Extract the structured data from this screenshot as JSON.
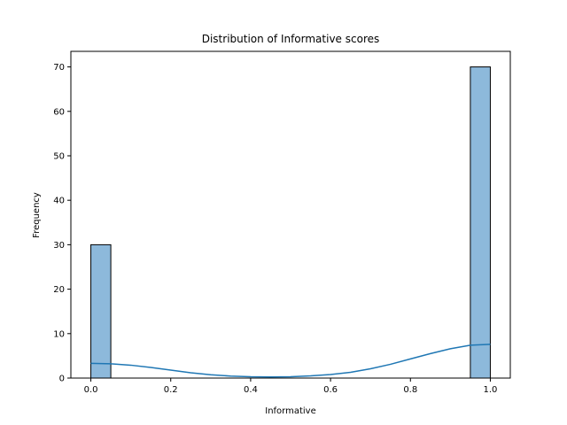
{
  "chart_data": {
    "type": "bar",
    "title": "Distribution of Informative scores",
    "xlabel": "Informative",
    "ylabel": "Frequency",
    "xlim": [
      -0.05,
      1.05
    ],
    "ylim": [
      0,
      73.5
    ],
    "xticks": [
      0.0,
      0.2,
      0.4,
      0.6,
      0.8,
      1.0
    ],
    "xtick_labels": [
      "0.0",
      "0.2",
      "0.4",
      "0.6",
      "0.8",
      "1.0"
    ],
    "yticks": [
      0,
      10,
      20,
      30,
      40,
      50,
      60,
      70
    ],
    "ytick_labels": [
      "0",
      "10",
      "20",
      "30",
      "40",
      "50",
      "60",
      "70"
    ],
    "bin_width": 0.05,
    "bins": [
      {
        "start": 0.0,
        "end": 0.05,
        "count": 30
      },
      {
        "start": 0.95,
        "end": 1.0,
        "count": 70
      }
    ],
    "kde": {
      "x": [
        0.0,
        0.05,
        0.1,
        0.15,
        0.2,
        0.25,
        0.3,
        0.35,
        0.4,
        0.45,
        0.5,
        0.55,
        0.6,
        0.65,
        0.7,
        0.75,
        0.8,
        0.85,
        0.9,
        0.95,
        1.0
      ],
      "y": [
        3.3,
        3.2,
        2.9,
        2.4,
        1.8,
        1.2,
        0.75,
        0.45,
        0.3,
        0.25,
        0.3,
        0.5,
        0.8,
        1.3,
        2.1,
        3.1,
        4.3,
        5.5,
        6.6,
        7.4,
        7.6
      ]
    },
    "colors": {
      "bar_fill": "#8db9db",
      "bar_edge": "#000000",
      "kde_line": "#1f77b4"
    },
    "grid": false,
    "legend": "none"
  }
}
